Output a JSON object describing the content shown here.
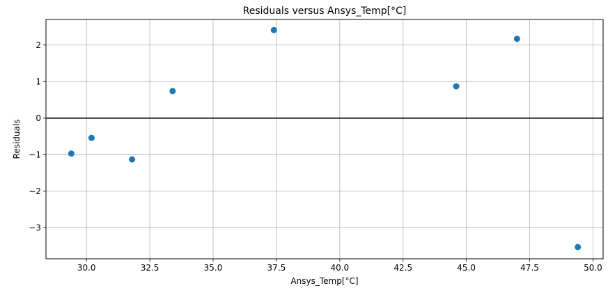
{
  "chart_data": {
    "type": "scatter",
    "title": "Residuals versus Ansys_Temp[°C]",
    "xlabel": "Ansys_Temp[°C]",
    "ylabel": "Residuals",
    "xlim": [
      28.4,
      50.4
    ],
    "ylim": [
      -3.85,
      2.7
    ],
    "xticks": [
      30.0,
      32.5,
      35.0,
      37.5,
      40.0,
      42.5,
      45.0,
      47.5,
      50.0
    ],
    "xtick_labels": [
      "30.0",
      "32.5",
      "35.0",
      "37.5",
      "40.0",
      "42.5",
      "45.0",
      "47.5",
      "50.0"
    ],
    "yticks": [
      -3,
      -2,
      -1,
      0,
      1,
      2
    ],
    "ytick_labels": [
      "−3",
      "−2",
      "−1",
      "0",
      "1",
      "2"
    ],
    "grid": true,
    "reference_line": {
      "y": 0,
      "color": "#000000"
    },
    "marker_color": "#1f77b4",
    "series": [
      {
        "x": [
          29.4,
          30.2,
          31.8,
          33.4,
          37.4,
          44.6,
          47.0,
          49.4
        ],
        "y": [
          -0.97,
          -0.54,
          -1.13,
          0.74,
          2.41,
          0.87,
          2.17,
          -3.53
        ]
      }
    ]
  }
}
